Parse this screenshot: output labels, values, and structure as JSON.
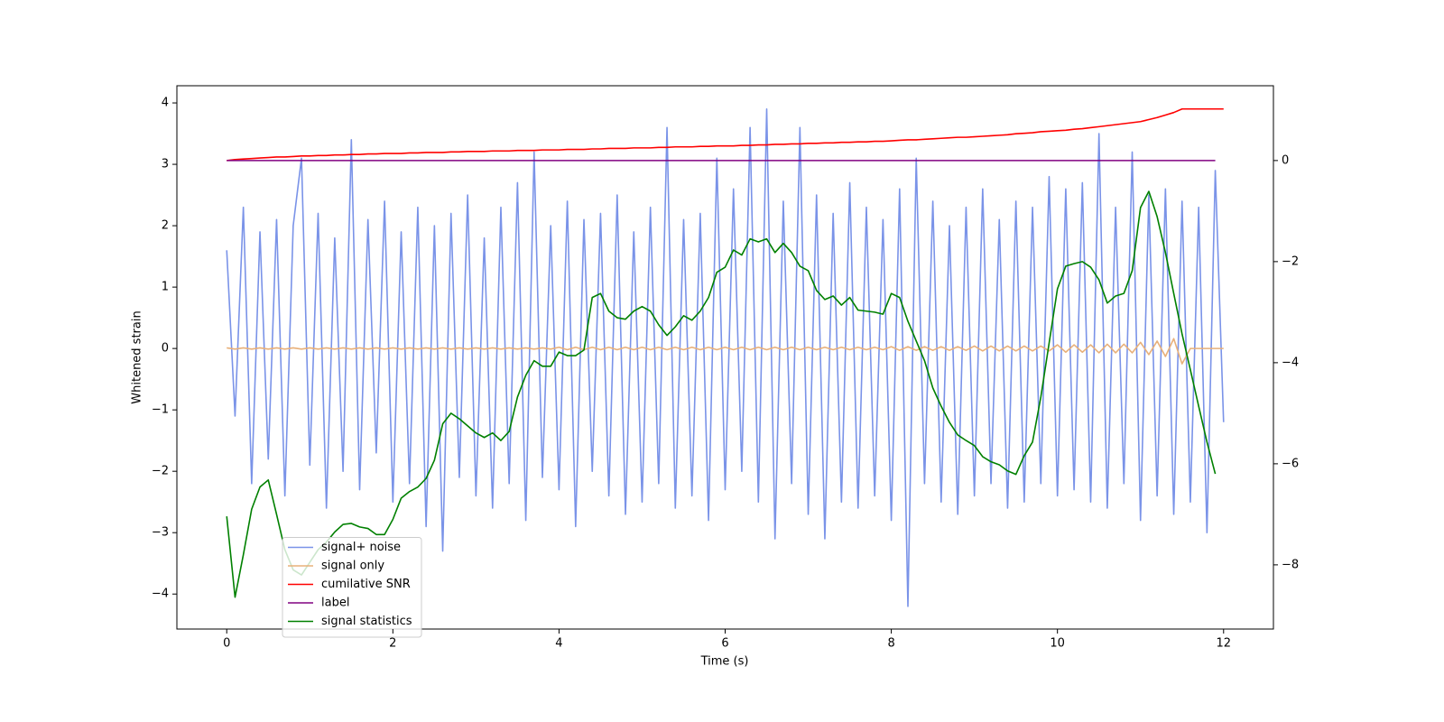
{
  "chart_data": {
    "type": "line",
    "xlabel": "Time (s)",
    "ylabel": "Whitened strain",
    "x": [
      0,
      0.1,
      0.2,
      0.3,
      0.4,
      0.5,
      0.6,
      0.7,
      0.8,
      0.9,
      1,
      1.1,
      1.2,
      1.3,
      1.4,
      1.5,
      1.6,
      1.7,
      1.8,
      1.9,
      2,
      2.1,
      2.2,
      2.3,
      2.4,
      2.5,
      2.6,
      2.7,
      2.8,
      2.9,
      3,
      3.1,
      3.2,
      3.3,
      3.4,
      3.5,
      3.6,
      3.7,
      3.8,
      3.9,
      4,
      4.1,
      4.2,
      4.3,
      4.4,
      4.5,
      4.6,
      4.7,
      4.8,
      4.9,
      5,
      5.1,
      5.2,
      5.3,
      5.4,
      5.5,
      5.6,
      5.7,
      5.8,
      5.9,
      6,
      6.1,
      6.2,
      6.3,
      6.4,
      6.5,
      6.6,
      6.7,
      6.8,
      6.9,
      7,
      7.1,
      7.2,
      7.3,
      7.4,
      7.5,
      7.6,
      7.7,
      7.8,
      7.9,
      8,
      8.1,
      8.2,
      8.3,
      8.4,
      8.5,
      8.6,
      8.7,
      8.8,
      8.9,
      9,
      9.1,
      9.2,
      9.3,
      9.4,
      9.5,
      9.6,
      9.7,
      9.8,
      9.9,
      10,
      10.1,
      10.2,
      10.3,
      10.4,
      10.5,
      10.6,
      10.7,
      10.8,
      10.9,
      11,
      11.1,
      11.2,
      11.3,
      11.4,
      11.5,
      11.6,
      11.7,
      11.8,
      11.9,
      12
    ],
    "series": [
      {
        "name": "signal+ noise",
        "color": "#7a93e8",
        "axis": "y",
        "values": [
          1.6,
          -1.1,
          2.3,
          -2.2,
          1.9,
          -1.8,
          2.1,
          -2.4,
          2.0,
          3.1,
          -1.9,
          2.2,
          -2.6,
          1.8,
          -2.0,
          3.4,
          -2.3,
          2.1,
          -1.7,
          2.4,
          -2.5,
          1.9,
          -2.2,
          2.3,
          -2.9,
          2.0,
          -3.3,
          2.2,
          -2.1,
          2.5,
          -2.4,
          1.8,
          -2.6,
          2.3,
          -2.2,
          2.7,
          -2.8,
          3.2,
          -2.1,
          2.0,
          -2.3,
          2.4,
          -2.9,
          2.1,
          -2.0,
          2.2,
          -2.4,
          2.5,
          -2.7,
          1.9,
          -2.5,
          2.3,
          -2.2,
          3.6,
          -2.6,
          2.1,
          -2.4,
          2.2,
          -2.8,
          3.1,
          -2.3,
          2.6,
          -2.0,
          3.6,
          -2.5,
          3.9,
          -3.1,
          2.4,
          -2.2,
          3.6,
          -2.7,
          2.5,
          -3.1,
          2.2,
          -2.5,
          2.7,
          -2.6,
          2.3,
          -2.4,
          2.1,
          -2.8,
          2.6,
          -4.2,
          3.1,
          -2.2,
          2.4,
          -2.5,
          2.0,
          -2.7,
          2.3,
          -2.4,
          2.6,
          -2.2,
          2.1,
          -2.6,
          2.4,
          -2.5,
          2.3,
          -2.2,
          2.8,
          -2.4,
          2.6,
          -2.3,
          2.7,
          -2.5,
          3.5,
          -2.6,
          2.3,
          -2.2,
          3.2,
          -2.8,
          2.5,
          -2.4,
          2.6,
          -2.7,
          2.4,
          -2.5,
          2.3,
          -3.0,
          2.9,
          -1.2
        ]
      },
      {
        "name": "signal only",
        "color": "#e8b07a",
        "axis": "y",
        "values": [
          0.01,
          -0.01,
          0.01,
          -0.01,
          0.01,
          -0.01,
          0.01,
          -0.01,
          0.01,
          -0.01,
          0.01,
          -0.01,
          0.01,
          -0.01,
          0.01,
          -0.01,
          0.01,
          -0.01,
          0.01,
          -0.01,
          0.01,
          -0.01,
          0.01,
          -0.01,
          0.01,
          -0.01,
          0.01,
          -0.01,
          0.01,
          -0.01,
          0.01,
          -0.01,
          0.01,
          -0.01,
          0.01,
          -0.01,
          0.01,
          -0.01,
          0.01,
          -0.01,
          0.02,
          -0.02,
          0.02,
          -0.02,
          0.02,
          -0.02,
          0.02,
          -0.02,
          0.02,
          -0.02,
          0.02,
          -0.02,
          0.02,
          -0.02,
          0.02,
          -0.02,
          0.02,
          -0.02,
          0.02,
          -0.02,
          0.02,
          -0.02,
          0.02,
          -0.02,
          0.02,
          -0.02,
          0.02,
          -0.02,
          0.02,
          -0.02,
          0.02,
          -0.02,
          0.02,
          -0.02,
          0.02,
          -0.02,
          0.02,
          -0.02,
          0.02,
          -0.02,
          0.03,
          -0.03,
          0.03,
          -0.03,
          0.03,
          -0.03,
          0.03,
          -0.03,
          0.03,
          -0.03,
          0.04,
          -0.04,
          0.04,
          -0.04,
          0.04,
          -0.04,
          0.04,
          -0.04,
          0.04,
          -0.04,
          0.06,
          -0.06,
          0.06,
          -0.06,
          0.06,
          -0.07,
          0.07,
          -0.07,
          0.07,
          -0.07,
          0.1,
          -0.1,
          0.12,
          -0.13,
          0.16,
          -0.25,
          0,
          0,
          0,
          0,
          0
        ]
      },
      {
        "name": "cumilative SNR",
        "color": "#ff0000",
        "axis": "y2",
        "values": [
          0,
          0.02,
          0.03,
          0.04,
          0.05,
          0.06,
          0.07,
          0.07,
          0.08,
          0.09,
          0.09,
          0.1,
          0.1,
          0.11,
          0.11,
          0.12,
          0.12,
          0.13,
          0.13,
          0.14,
          0.14,
          0.14,
          0.15,
          0.15,
          0.16,
          0.16,
          0.16,
          0.17,
          0.17,
          0.18,
          0.18,
          0.18,
          0.19,
          0.19,
          0.19,
          0.2,
          0.2,
          0.2,
          0.21,
          0.21,
          0.21,
          0.22,
          0.22,
          0.22,
          0.23,
          0.23,
          0.24,
          0.24,
          0.24,
          0.25,
          0.25,
          0.25,
          0.26,
          0.26,
          0.27,
          0.27,
          0.27,
          0.28,
          0.28,
          0.29,
          0.29,
          0.29,
          0.3,
          0.3,
          0.31,
          0.31,
          0.32,
          0.32,
          0.33,
          0.33,
          0.34,
          0.34,
          0.35,
          0.35,
          0.36,
          0.36,
          0.37,
          0.37,
          0.38,
          0.38,
          0.39,
          0.4,
          0.41,
          0.41,
          0.42,
          0.43,
          0.44,
          0.45,
          0.46,
          0.46,
          0.47,
          0.48,
          0.49,
          0.5,
          0.51,
          0.53,
          0.54,
          0.55,
          0.57,
          0.58,
          0.59,
          0.6,
          0.62,
          0.63,
          0.65,
          0.67,
          0.69,
          0.71,
          0.73,
          0.75,
          0.77,
          0.81,
          0.85,
          0.9,
          0.95,
          1.02,
          1.02,
          1.02,
          1.02,
          1.02,
          1.02
        ]
      },
      {
        "name": "label",
        "color": "#800080",
        "axis": "y2",
        "values": [
          0,
          0,
          0,
          0,
          0,
          0,
          0,
          0,
          0,
          0,
          0,
          0,
          0,
          0,
          0,
          0,
          0,
          0,
          0,
          0,
          0,
          0,
          0,
          0,
          0,
          0,
          0,
          0,
          0,
          0,
          0,
          0,
          0,
          0,
          0,
          0,
          0,
          0,
          0,
          0,
          0,
          0,
          0,
          0,
          0,
          0,
          0,
          0,
          0,
          0,
          0,
          0,
          0,
          0,
          0,
          0,
          0,
          0,
          0,
          0,
          0,
          0,
          0,
          0,
          0,
          0,
          0,
          0,
          0,
          0,
          0,
          0,
          0,
          0,
          0,
          0,
          0,
          0,
          0,
          0,
          0,
          0,
          0,
          0,
          0,
          0,
          0,
          0,
          0,
          0,
          0,
          0,
          0,
          0,
          0,
          0,
          0,
          0,
          0,
          0,
          0,
          0,
          0,
          0,
          0,
          0,
          0,
          0,
          0,
          0,
          0,
          0,
          0,
          0,
          0,
          0,
          0,
          0,
          0,
          0,
          null
        ]
      },
      {
        "name": "signal statistics",
        "color": "#008000",
        "axis": "y2",
        "values": [
          -7.04,
          -8.64,
          -7.8,
          -6.9,
          -6.46,
          -6.32,
          -7.0,
          -7.7,
          -8.1,
          -8.2,
          -7.95,
          -7.7,
          -7.55,
          -7.35,
          -7.2,
          -7.18,
          -7.25,
          -7.28,
          -7.4,
          -7.4,
          -7.1,
          -6.68,
          -6.55,
          -6.46,
          -6.29,
          -5.93,
          -5.21,
          -5.0,
          -5.11,
          -5.25,
          -5.39,
          -5.48,
          -5.39,
          -5.54,
          -5.36,
          -4.68,
          -4.25,
          -3.96,
          -4.07,
          -4.07,
          -3.79,
          -3.86,
          -3.86,
          -3.75,
          -2.71,
          -2.63,
          -2.98,
          -3.11,
          -3.14,
          -2.98,
          -2.89,
          -2.98,
          -3.25,
          -3.46,
          -3.29,
          -3.07,
          -3.16,
          -2.98,
          -2.71,
          -2.21,
          -2.11,
          -1.77,
          -1.87,
          -1.55,
          -1.61,
          -1.55,
          -1.82,
          -1.64,
          -1.82,
          -2.09,
          -2.18,
          -2.57,
          -2.75,
          -2.68,
          -2.86,
          -2.71,
          -2.96,
          -2.98,
          -3.0,
          -3.04,
          -2.63,
          -2.71,
          -3.18,
          -3.57,
          -3.96,
          -4.5,
          -4.86,
          -5.18,
          -5.43,
          -5.54,
          -5.64,
          -5.86,
          -5.96,
          -6.02,
          -6.14,
          -6.21,
          -5.84,
          -5.57,
          -4.68,
          -3.61,
          -2.54,
          -2.09,
          -2.04,
          -2.0,
          -2.11,
          -2.36,
          -2.82,
          -2.68,
          -2.63,
          -2.18,
          -0.93,
          -0.61,
          -1.11,
          -1.82,
          -2.63,
          -3.43,
          -4.14,
          -4.86,
          -5.57,
          -6.2,
          null
        ]
      }
    ],
    "xlim": [
      -0.6,
      12.6
    ],
    "xticks": [
      0,
      2,
      4,
      6,
      8,
      10,
      12
    ],
    "ylim": [
      -4.57,
      4.28
    ],
    "yticks": [
      {
        "value": -4,
        "label": "−4"
      },
      {
        "value": -3,
        "label": "−3"
      },
      {
        "value": -2,
        "label": "−2"
      },
      {
        "value": -1,
        "label": "−1"
      },
      0,
      1,
      2,
      3,
      4
    ],
    "y2lim": [
      -9.27,
      1.48
    ],
    "y2ticks": [
      {
        "value": -8,
        "label": "−8"
      },
      {
        "value": -6,
        "label": "−6"
      },
      {
        "value": -4,
        "label": "−4"
      },
      {
        "value": -2,
        "label": "−2"
      },
      0
    ],
    "grid": false,
    "legend": "lower left"
  }
}
